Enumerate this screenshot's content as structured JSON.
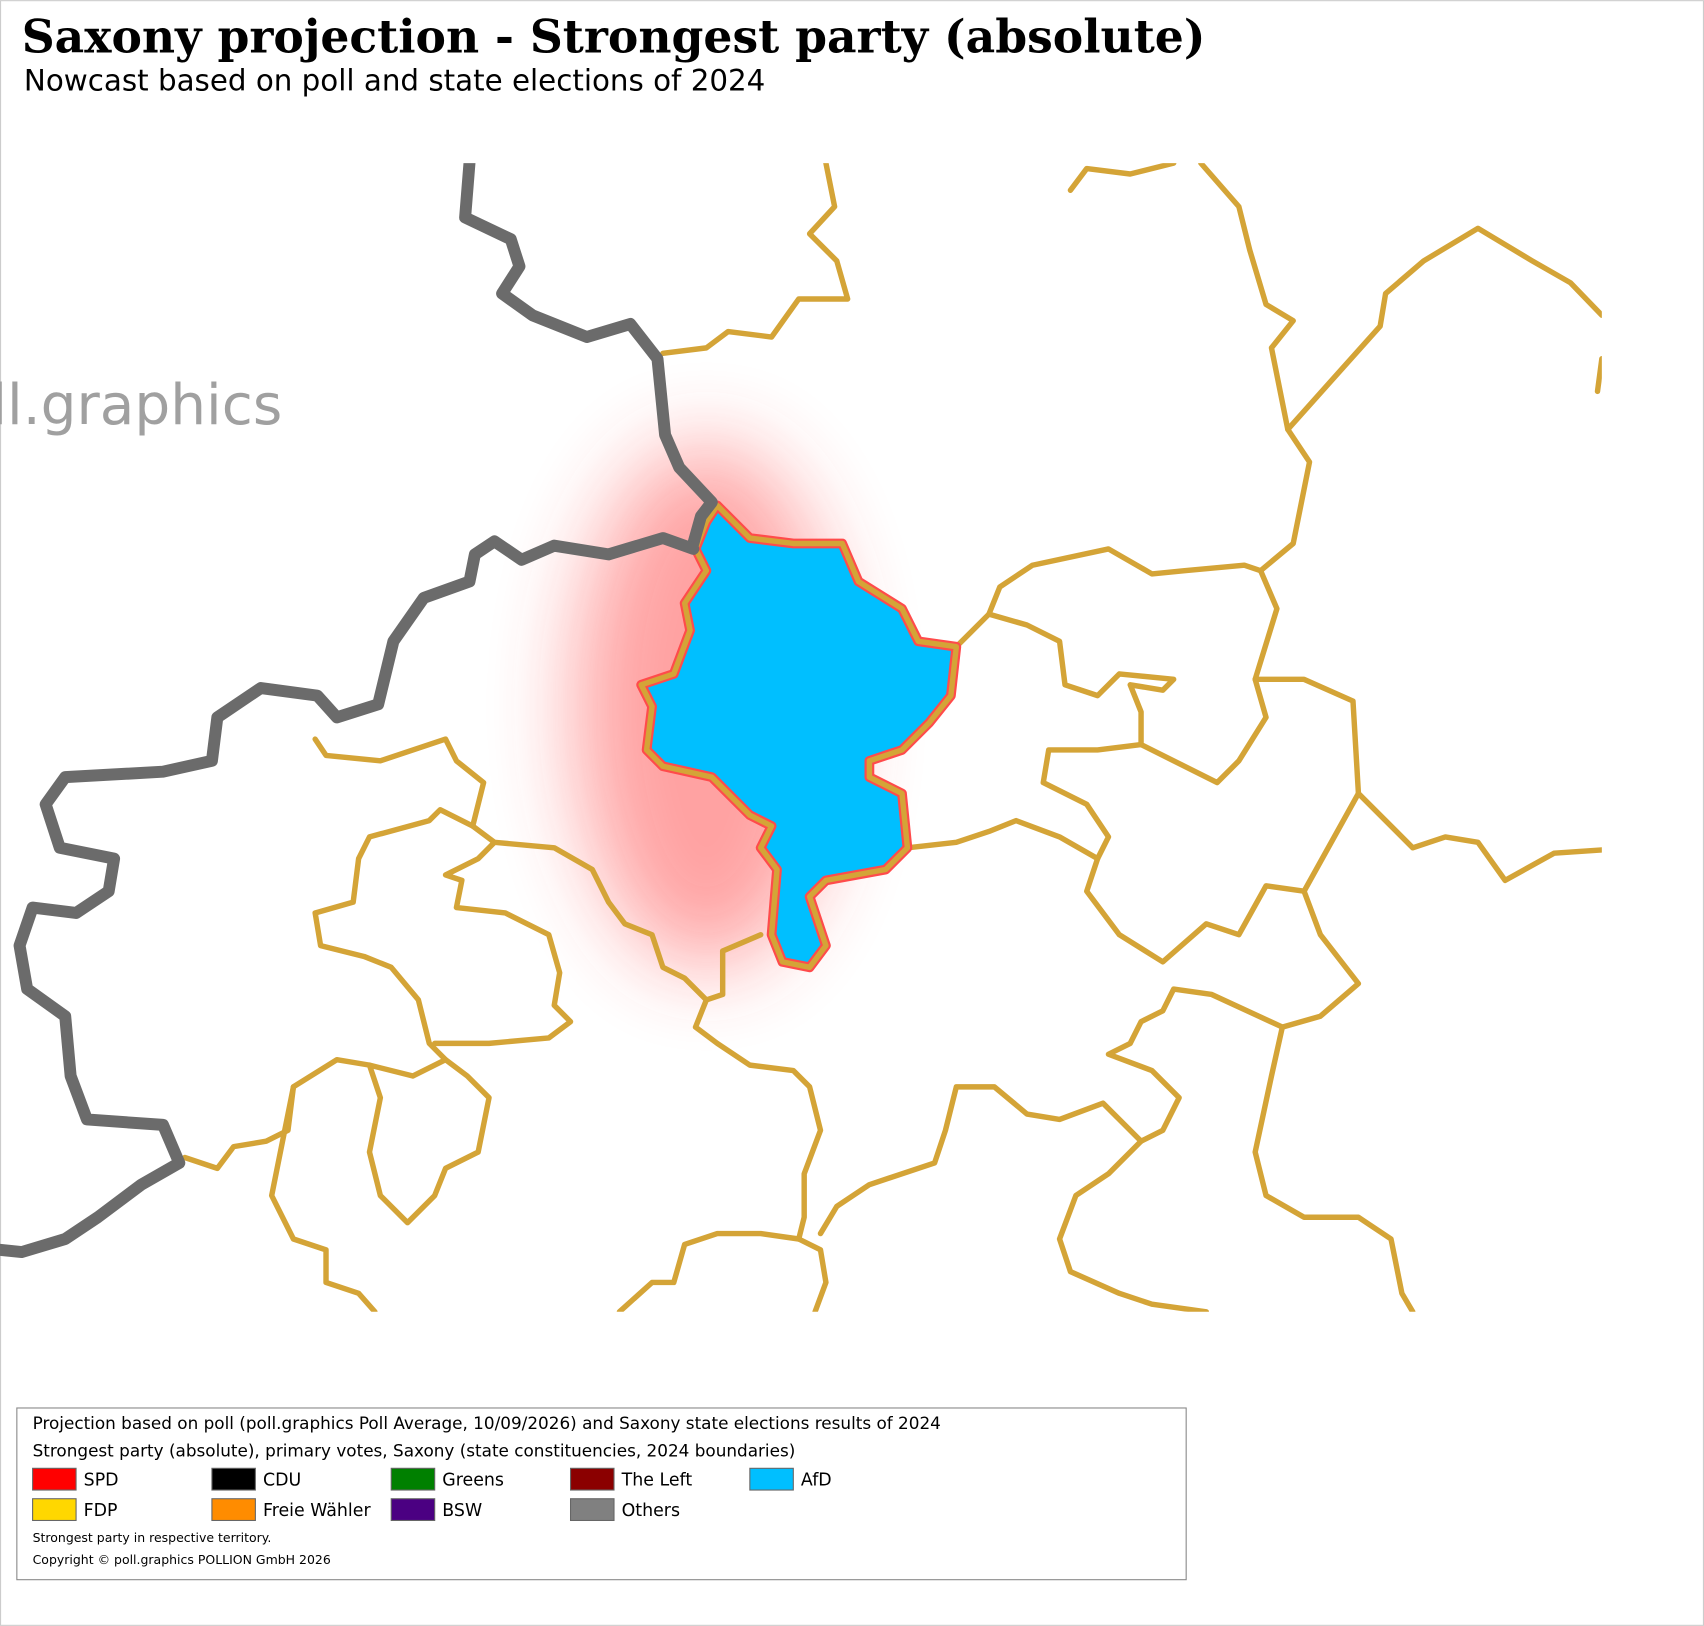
{
  "header": {
    "title": "Saxony projection - Strongest party (absolute)",
    "subtitle": "Nowcast based on poll and state elections of 2024"
  },
  "watermark": "ll.graphics",
  "legend": {
    "lines": [
      "Projection based on poll (poll.graphics Poll Average, 10/09/2026) and Saxony state elections results of 2024",
      "Strongest party (absolute), primary votes, Saxony (state constituencies, 2024 boundaries)"
    ],
    "items": [
      {
        "name": "SPD",
        "color": "#ff0000"
      },
      {
        "name": "CDU",
        "color": "#000000"
      },
      {
        "name": "Greens",
        "color": "#008000"
      },
      {
        "name": "The Left",
        "color": "#8b0000"
      },
      {
        "name": "AfD",
        "color": "#00bfff"
      },
      {
        "name": "FDP",
        "color": "#ffd700"
      },
      {
        "name": "Freie Wähler",
        "color": "#ff8c00"
      },
      {
        "name": "BSW",
        "color": "#4b0082"
      },
      {
        "name": "Others",
        "color": "#808080"
      }
    ],
    "notes": [
      "Strongest party in respective territory.",
      "Copyright © poll.graphics POLLION GmbH 2026"
    ]
  }
}
